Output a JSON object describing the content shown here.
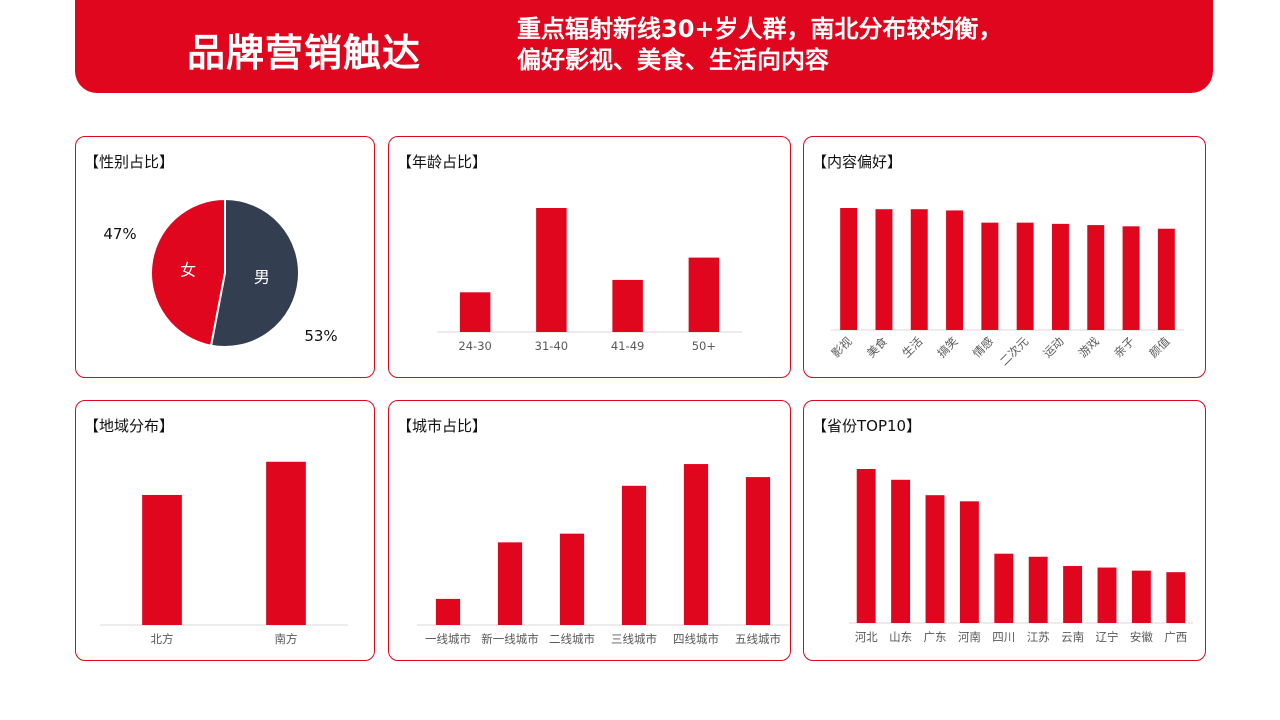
{
  "header": {
    "title": "品牌营销触达",
    "subtitle_line1": "重点辐射新线30+岁人群，南北分布较均衡，",
    "subtitle_line2": "偏好影视、美食、生活向内容"
  },
  "colors": {
    "accent": "#e0061e",
    "male": "#333f50",
    "axis": "#d9d9d9"
  },
  "chart_data": [
    {
      "id": "gender",
      "type": "pie",
      "title": "【性别占比】",
      "slices": [
        {
          "label": "女",
          "value": 47,
          "pct_text": "47%"
        },
        {
          "label": "男",
          "value": 53,
          "pct_text": "53%"
        }
      ]
    },
    {
      "id": "age",
      "type": "bar",
      "title": "【年龄占比】",
      "categories": [
        "24-30",
        "31-40",
        "41-49",
        "50+"
      ],
      "values": [
        16,
        50,
        21,
        30
      ],
      "ylim": [
        0,
        50
      ]
    },
    {
      "id": "content",
      "type": "bar",
      "title": "【内容偏好】",
      "categories": [
        "影视",
        "美食",
        "生活",
        "搞笑",
        "情感",
        "二次元",
        "运动",
        "游戏",
        "亲子",
        "颜值"
      ],
      "values": [
        100,
        99,
        99,
        98,
        88,
        88,
        87,
        86,
        85,
        83
      ],
      "ylim": [
        0,
        100
      ]
    },
    {
      "id": "region",
      "type": "bar",
      "title": "【地域分布】",
      "categories": [
        "北方",
        "南方"
      ],
      "values": [
        47,
        59
      ],
      "ylim": [
        0,
        60
      ]
    },
    {
      "id": "city",
      "type": "bar",
      "title": "【城市占比】",
      "categories": [
        "一线城市",
        "新一线城市",
        "二线城市",
        "三线城市",
        "四线城市",
        "五线城市"
      ],
      "values": [
        6,
        19,
        21,
        32,
        37,
        34
      ],
      "ylim": [
        0,
        40
      ]
    },
    {
      "id": "province",
      "type": "bar",
      "title": "【省份TOP10】",
      "categories": [
        "河北",
        "山东",
        "广东",
        "河南",
        "四川",
        "江苏",
        "云南",
        "辽宁",
        "安徽",
        "广西"
      ],
      "values": [
        100,
        93,
        83,
        79,
        45,
        43,
        37,
        36,
        34,
        33
      ],
      "ylim": [
        0,
        100
      ]
    }
  ]
}
